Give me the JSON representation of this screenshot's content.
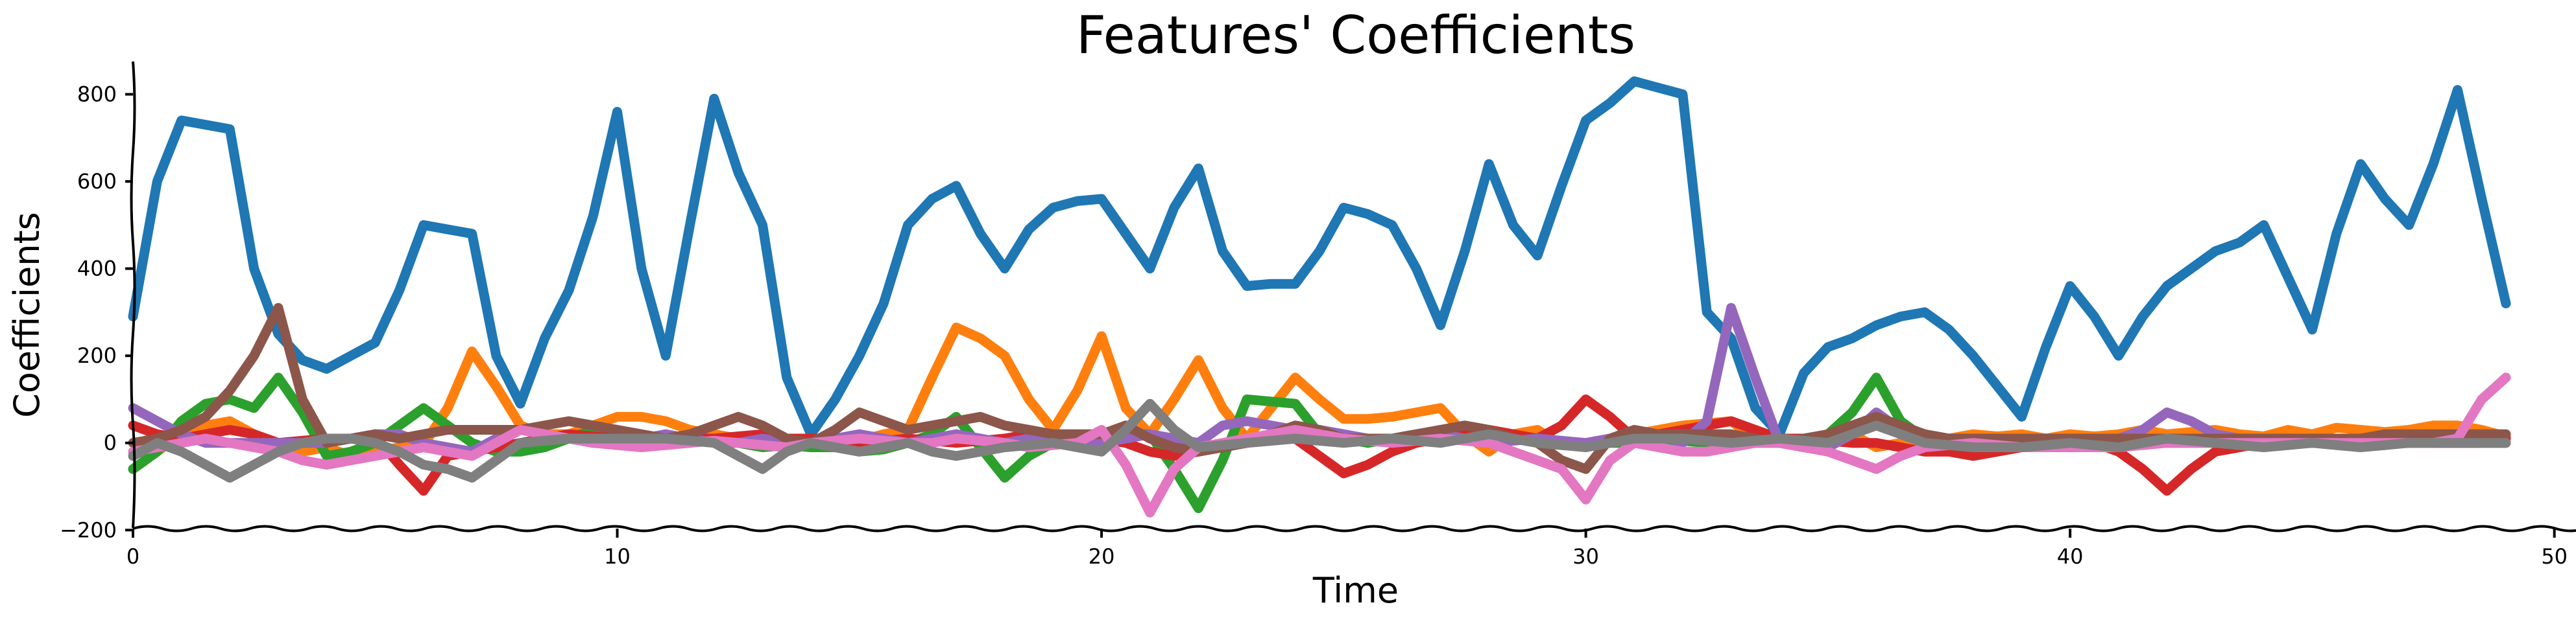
{
  "chart_data": {
    "type": "line",
    "title": "Features' Coefficients",
    "xlabel": "Time",
    "ylabel": "Coefficients",
    "xlim": [
      0,
      50.5
    ],
    "ylim": [
      -210,
      890
    ],
    "xticks": [
      0,
      10,
      20,
      30,
      40,
      50
    ],
    "yticks": [
      -200,
      0,
      200,
      400,
      600,
      800
    ],
    "xtick_labels": [
      "0",
      "10",
      "20",
      "30",
      "40",
      "50"
    ],
    "ytick_labels": [
      "−200",
      "0",
      "200",
      "400",
      "600",
      "800"
    ],
    "grid": false,
    "legend": "none",
    "x": [
      0,
      0.5,
      1,
      1.5,
      2,
      2.5,
      3,
      3.5,
      4,
      4.5,
      5,
      5.5,
      6,
      6.5,
      7,
      7.5,
      8,
      8.5,
      9,
      9.5,
      10,
      10.5,
      11,
      11.5,
      12,
      12.5,
      13,
      13.5,
      14,
      14.5,
      15,
      15.5,
      16,
      16.5,
      17,
      17.5,
      18,
      18.5,
      19,
      19.5,
      20,
      20.5,
      21,
      21.5,
      22,
      22.5,
      23,
      23.5,
      24,
      24.5,
      25,
      25.5,
      26,
      26.5,
      27,
      27.5,
      28,
      28.5,
      29,
      29.5,
      30,
      30.5,
      31,
      31.5,
      32,
      32.5,
      33,
      33.5,
      34,
      34.5,
      35,
      35.5,
      36,
      36.5,
      37,
      37.5,
      38,
      38.5,
      39,
      39.5,
      40,
      40.5,
      41,
      41.5,
      42,
      42.5,
      43,
      43.5,
      44,
      44.5,
      45,
      45.5,
      46,
      46.5,
      47,
      47.5,
      48,
      48.5,
      49
    ],
    "series": [
      {
        "color": "#1f77b4",
        "values": [
          290,
          600,
          740,
          730,
          720,
          400,
          250,
          190,
          170,
          200,
          230,
          350,
          500,
          490,
          480,
          200,
          90,
          240,
          350,
          520,
          760,
          400,
          200,
          500,
          790,
          620,
          500,
          150,
          20,
          100,
          200,
          320,
          500,
          560,
          590,
          480,
          400,
          490,
          540,
          555,
          560,
          480,
          400,
          540,
          630,
          440,
          360,
          365,
          365,
          440,
          540,
          525,
          500,
          400,
          270,
          440,
          640,
          500,
          430,
          590,
          740,
          780,
          830,
          815,
          800,
          300,
          240,
          80,
          20,
          160,
          220,
          240,
          270,
          290,
          300,
          260,
          200,
          130,
          60,
          220,
          360,
          290,
          200,
          290,
          360,
          400,
          440,
          460,
          500,
          380,
          260,
          480,
          640,
          560,
          500,
          640,
          810,
          560,
          320
        ]
      },
      {
        "color": "#ff7f0e",
        "values": [
          -60,
          -20,
          20,
          40,
          50,
          20,
          -10,
          -20,
          -10,
          -30,
          -20,
          -10,
          -5,
          80,
          210,
          130,
          40,
          20,
          20,
          40,
          60,
          60,
          50,
          30,
          20,
          10,
          0,
          10,
          5,
          10,
          5,
          20,
          30,
          150,
          265,
          240,
          200,
          100,
          30,
          120,
          245,
          80,
          20,
          100,
          190,
          80,
          10,
          80,
          150,
          100,
          55,
          55,
          60,
          70,
          80,
          20,
          -20,
          20,
          30,
          -5,
          0,
          10,
          20,
          30,
          40,
          45,
          50,
          10,
          0,
          5,
          20,
          20,
          -10,
          0,
          10,
          10,
          20,
          15,
          20,
          10,
          20,
          15,
          20,
          30,
          20,
          25,
          30,
          20,
          15,
          30,
          20,
          35,
          30,
          25,
          30,
          40,
          40,
          30,
          15
        ]
      },
      {
        "color": "#2ca02c",
        "values": [
          -60,
          -20,
          50,
          90,
          100,
          80,
          150,
          70,
          -30,
          -20,
          0,
          40,
          80,
          40,
          0,
          -20,
          -20,
          -10,
          10,
          30,
          20,
          10,
          0,
          0,
          10,
          0,
          -10,
          -5,
          -10,
          -10,
          -20,
          -15,
          0,
          20,
          60,
          -10,
          -80,
          -30,
          0,
          0,
          10,
          20,
          20,
          -60,
          -150,
          -40,
          100,
          95,
          90,
          20,
          10,
          0,
          10,
          20,
          20,
          10,
          0,
          10,
          5,
          0,
          0,
          0,
          0,
          5,
          5,
          0,
          0,
          0,
          0,
          5,
          20,
          70,
          150,
          50,
          10,
          0,
          -5,
          0,
          0,
          0,
          0,
          0,
          0,
          0,
          0,
          0,
          0,
          0,
          0,
          0,
          0,
          0,
          0,
          0,
          0,
          0,
          0,
          0,
          0
        ]
      },
      {
        "color": "#d62728",
        "values": [
          40,
          20,
          10,
          20,
          30,
          20,
          0,
          5,
          10,
          10,
          15,
          -50,
          -110,
          -30,
          -20,
          -10,
          0,
          10,
          20,
          15,
          10,
          10,
          5,
          10,
          10,
          15,
          20,
          10,
          10,
          5,
          0,
          5,
          10,
          5,
          0,
          5,
          10,
          20,
          20,
          10,
          10,
          0,
          -20,
          -30,
          -20,
          -10,
          0,
          5,
          10,
          -30,
          -70,
          -50,
          -20,
          0,
          10,
          20,
          30,
          20,
          10,
          40,
          100,
          60,
          10,
          20,
          30,
          40,
          50,
          30,
          10,
          10,
          5,
          0,
          0,
          -10,
          -20,
          -20,
          -30,
          -20,
          -10,
          -5,
          0,
          0,
          -20,
          -60,
          -110,
          -60,
          -20,
          -10,
          0,
          0,
          0,
          0,
          0,
          0,
          0,
          0,
          0,
          0,
          10
        ]
      },
      {
        "color": "#9467bd",
        "values": [
          80,
          50,
          20,
          0,
          0,
          0,
          0,
          0,
          0,
          10,
          20,
          20,
          0,
          -10,
          -20,
          10,
          30,
          20,
          10,
          0,
          0,
          10,
          20,
          10,
          0,
          0,
          10,
          0,
          0,
          10,
          20,
          10,
          0,
          10,
          20,
          10,
          0,
          10,
          20,
          10,
          0,
          10,
          20,
          10,
          0,
          40,
          50,
          40,
          30,
          30,
          20,
          10,
          0,
          10,
          20,
          10,
          0,
          5,
          10,
          5,
          0,
          10,
          20,
          20,
          0,
          50,
          310,
          150,
          0,
          -10,
          -10,
          20,
          70,
          30,
          10,
          5,
          0,
          5,
          10,
          5,
          0,
          5,
          10,
          30,
          70,
          50,
          20,
          10,
          10,
          5,
          0,
          5,
          10,
          5,
          0,
          10,
          20,
          10,
          0
        ]
      },
      {
        "color": "#8c564b",
        "values": [
          0,
          10,
          30,
          60,
          120,
          200,
          310,
          100,
          0,
          10,
          20,
          10,
          20,
          30,
          30,
          30,
          30,
          40,
          50,
          40,
          30,
          20,
          10,
          20,
          40,
          60,
          40,
          10,
          0,
          30,
          70,
          50,
          30,
          40,
          50,
          60,
          40,
          30,
          20,
          20,
          20,
          40,
          10,
          -10,
          -20,
          -10,
          0,
          20,
          40,
          30,
          10,
          10,
          10,
          20,
          30,
          40,
          30,
          10,
          0,
          -40,
          -60,
          10,
          30,
          20,
          20,
          20,
          20,
          10,
          0,
          10,
          20,
          40,
          60,
          40,
          20,
          10,
          10,
          10,
          10,
          10,
          10,
          10,
          10,
          10,
          10,
          10,
          10,
          10,
          10,
          10,
          10,
          10,
          10,
          20,
          20,
          20,
          20,
          20,
          20
        ]
      },
      {
        "color": "#e377c2",
        "values": [
          -20,
          -10,
          0,
          10,
          0,
          -10,
          -20,
          -40,
          -50,
          -40,
          -30,
          -20,
          -10,
          -20,
          -30,
          0,
          30,
          20,
          10,
          0,
          -5,
          -10,
          -5,
          0,
          5,
          0,
          -5,
          -10,
          0,
          5,
          10,
          5,
          0,
          0,
          10,
          5,
          0,
          -10,
          -5,
          0,
          30,
          -50,
          -160,
          -60,
          -10,
          0,
          10,
          20,
          30,
          20,
          10,
          5,
          0,
          5,
          10,
          5,
          0,
          -20,
          -40,
          -60,
          -130,
          -40,
          0,
          -10,
          -20,
          -20,
          -10,
          0,
          0,
          -10,
          -20,
          -40,
          -60,
          -30,
          -10,
          -5,
          0,
          -5,
          -10,
          -10,
          -10,
          -10,
          -10,
          -5,
          0,
          0,
          0,
          0,
          0,
          0,
          0,
          0,
          0,
          0,
          0,
          0,
          10,
          100,
          150
        ]
      },
      {
        "color": "#7f7f7f",
        "values": [
          -30,
          0,
          -20,
          -50,
          -80,
          -50,
          -20,
          0,
          10,
          10,
          0,
          -20,
          -50,
          -60,
          -80,
          -40,
          0,
          5,
          10,
          10,
          10,
          10,
          10,
          5,
          0,
          -30,
          -60,
          -20,
          0,
          -10,
          -20,
          -10,
          0,
          -20,
          -30,
          -20,
          -10,
          -5,
          0,
          -10,
          -20,
          30,
          90,
          30,
          -10,
          -5,
          0,
          5,
          10,
          5,
          0,
          5,
          10,
          5,
          0,
          10,
          20,
          10,
          0,
          -5,
          -10,
          0,
          10,
          10,
          10,
          5,
          0,
          5,
          10,
          5,
          0,
          20,
          40,
          20,
          0,
          -5,
          -10,
          -10,
          -10,
          -5,
          0,
          -5,
          -10,
          0,
          10,
          5,
          0,
          -5,
          -10,
          -5,
          0,
          -5,
          -10,
          -5,
          0,
          0,
          0,
          0,
          0
        ]
      }
    ]
  }
}
